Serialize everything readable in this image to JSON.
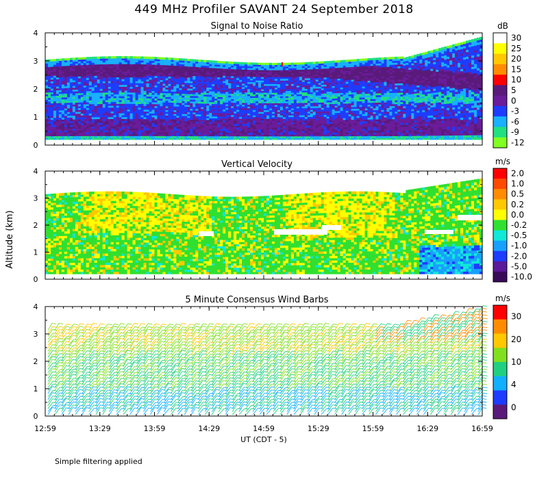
{
  "title": "449 MHz Profiler SAVANT 24 September 2018",
  "ylabel": "Altitude (km)",
  "xlabel": "UT  (CDT - 5)",
  "footnote": "Simple filtering applied",
  "time_ticks": [
    "12:59",
    "13:29",
    "13:59",
    "14:29",
    "14:59",
    "15:29",
    "15:59",
    "16:29",
    "16:59"
  ],
  "chart_data": [
    {
      "type": "heatmap",
      "title": "Signal to Noise Ratio",
      "ylim": [
        0,
        4
      ],
      "yticks": [
        "0",
        "1",
        "2",
        "3",
        "4"
      ],
      "colorbar": {
        "unit": "dB",
        "labels": [
          "30",
          "25",
          "20",
          "15",
          "10",
          "5",
          "0",
          "-3",
          "-6",
          "-9",
          "-12"
        ],
        "colors": [
          "#ffffff",
          "#ffff00",
          "#ffc800",
          "#ff8c00",
          "#ff0000",
          "#5a1a7a",
          "#6a1c9a",
          "#1e3cff",
          "#18b0ff",
          "#20e080",
          "#80ff20"
        ]
      },
      "layers_km": [
        {
          "label": "top of echo",
          "top": 3.1,
          "top_late": 3.8
        },
        {
          "label": "high SNR layer",
          "center": 2.7,
          "center_late": 2.2
        },
        {
          "label": "low SNR gap",
          "center": 1.7
        },
        {
          "label": "near-surface SNR layer",
          "center": 0.5
        }
      ]
    },
    {
      "type": "heatmap",
      "title": "Vertical Velocity",
      "ylim": [
        0,
        4
      ],
      "yticks": [
        "0",
        "1",
        "2",
        "3",
        "4"
      ],
      "colorbar": {
        "unit": "m/s",
        "labels": [
          "2.0",
          "1.0",
          "0.5",
          "0.2",
          "0.0",
          "-0.2",
          "-0.5",
          "-1.0",
          "-2.0",
          "-5.0",
          "-10.0"
        ],
        "colors": [
          "#ff0000",
          "#ff4a00",
          "#ff8c00",
          "#ffc800",
          "#ffff00",
          "#30e030",
          "#10e8d8",
          "#18a0ff",
          "#1e3cff",
          "#5a1a9a",
          "#3a0a5a"
        ]
      }
    },
    {
      "type": "wind_barbs",
      "title": "5 Minute Consensus Wind Barbs",
      "ylim": [
        0,
        4
      ],
      "yticks": [
        "0",
        "1",
        "2",
        "3",
        "4"
      ],
      "colorbar": {
        "unit": "m/s",
        "labels": [
          "30",
          "20",
          "10",
          "4",
          "0"
        ],
        "colors": [
          "#ff0000",
          "#ff8c00",
          "#ffc800",
          "#80e020",
          "#20d080",
          "#10b0ff",
          "#1e3cff",
          "#5a1a7a"
        ]
      }
    }
  ]
}
